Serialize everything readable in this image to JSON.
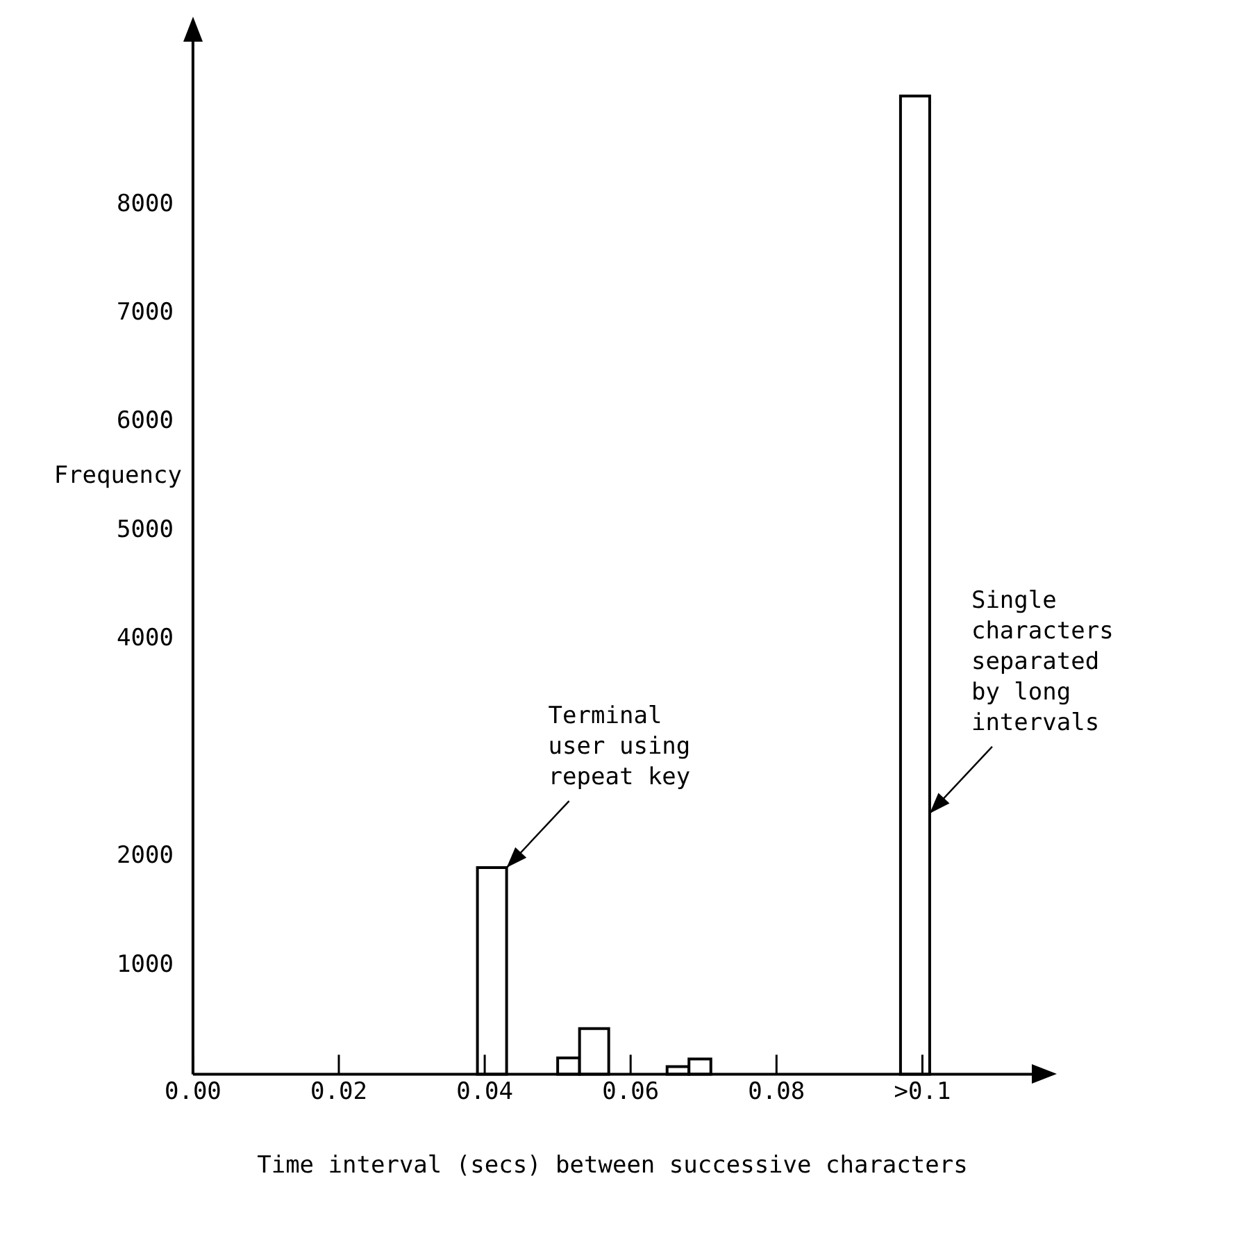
{
  "chart_data": {
    "type": "histogram",
    "xlabel": "Time interval (secs) between successive characters",
    "ylabel": "Frequency",
    "bins": [
      0.039,
      0.043,
      0.05,
      0.053,
      0.057,
      0.065,
      0.068,
      0.071,
      0.097,
      0.101
    ],
    "values": [
      1900,
      0,
      150,
      420,
      0,
      70,
      140,
      0,
      9000
    ],
    "color": "#000000",
    "xlim": [
      0,
      0.115
    ],
    "xticks": [
      {
        "value": 0,
        "label": "0.00"
      },
      {
        "value": 0.02,
        "label": "0.02"
      },
      {
        "value": 0.04,
        "label": "0.04"
      },
      {
        "value": 0.06,
        "label": "0.06"
      },
      {
        "value": 0.08,
        "label": "0.08"
      },
      {
        "value": 0.1,
        "label": ">0.1"
      }
    ],
    "ylim": [
      0,
      9500
    ],
    "yticks": [
      1000,
      2000,
      4000,
      5000,
      6000,
      7000,
      8000
    ],
    "grid": false,
    "legend": false,
    "annotations": [
      {
        "text": "Terminal\nuser using\nrepeat key",
        "x": 0.043,
        "y": 1900
      },
      {
        "text": "Single\ncharacters\nseparated\nby long\nintervals",
        "x": 0.101,
        "y": 2400
      }
    ]
  }
}
